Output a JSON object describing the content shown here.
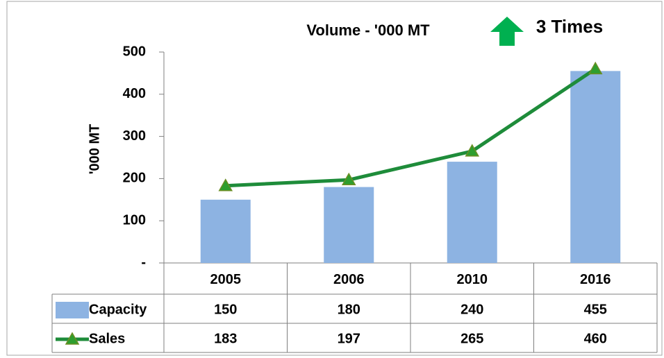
{
  "chart_data": {
    "type": "bar_line_table",
    "title": "Volume  - '000 MT",
    "annotation": "3 Times",
    "y_label": "'000 MT",
    "categories": [
      "2005",
      "2006",
      "2010",
      "2016"
    ],
    "series": [
      {
        "name": "Capacity",
        "type": "bar",
        "color": "#8db3e2",
        "values": [
          150,
          180,
          240,
          455
        ]
      },
      {
        "name": "Sales",
        "type": "line",
        "color": "#1e8c3a",
        "marker_color": "#2e9e2e",
        "values": [
          183,
          197,
          265,
          460
        ]
      }
    ],
    "ylim": [
      0,
      500
    ],
    "yticks": [
      {
        "value": 0,
        "label": "-"
      },
      100,
      200,
      300,
      400,
      500
    ],
    "grid": false
  }
}
